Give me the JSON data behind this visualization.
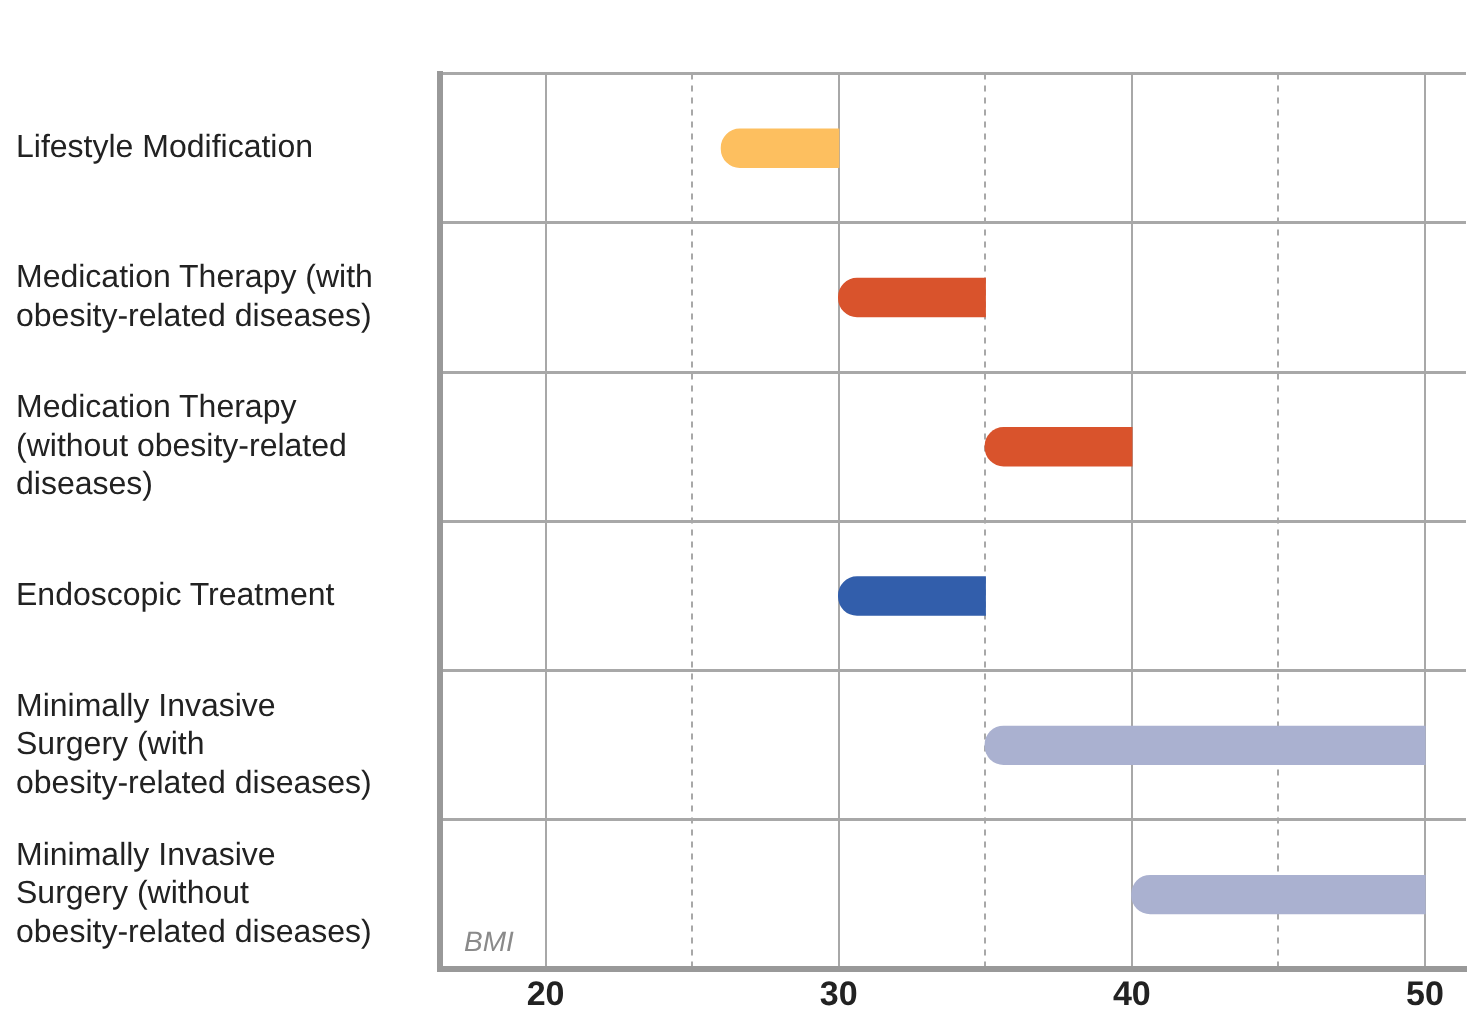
{
  "chart_data": {
    "type": "bar",
    "orientation": "horizontal",
    "xlabel": "BMI",
    "categories": [
      "Lifestyle Modification",
      "Medication Therapy (with obesity-related diseases)",
      "Medication Therapy (without obesity-related diseases)",
      "Endoscopic Treatment",
      "Minimally Invasive Surgery (with obesity-related diseases)",
      "Minimally Invasive Surgery (without obesity-related diseases)"
    ],
    "base": [
      26,
      30,
      35,
      30,
      35,
      40
    ],
    "values": [
      4,
      5,
      5,
      5,
      15,
      10
    ],
    "colors": [
      "#fdbf5f",
      "#d9532c",
      "#d9532c",
      "#325eab",
      "#aab1d0",
      "#aab1d0"
    ],
    "xlim": [
      16.4,
      51.4
    ],
    "xticks": [
      20,
      {
        "value": 25,
        "label": null
      },
      30,
      {
        "value": 35,
        "label": null
      },
      40,
      {
        "value": 45,
        "label": null
      },
      50
    ],
    "grid": true
  }
}
